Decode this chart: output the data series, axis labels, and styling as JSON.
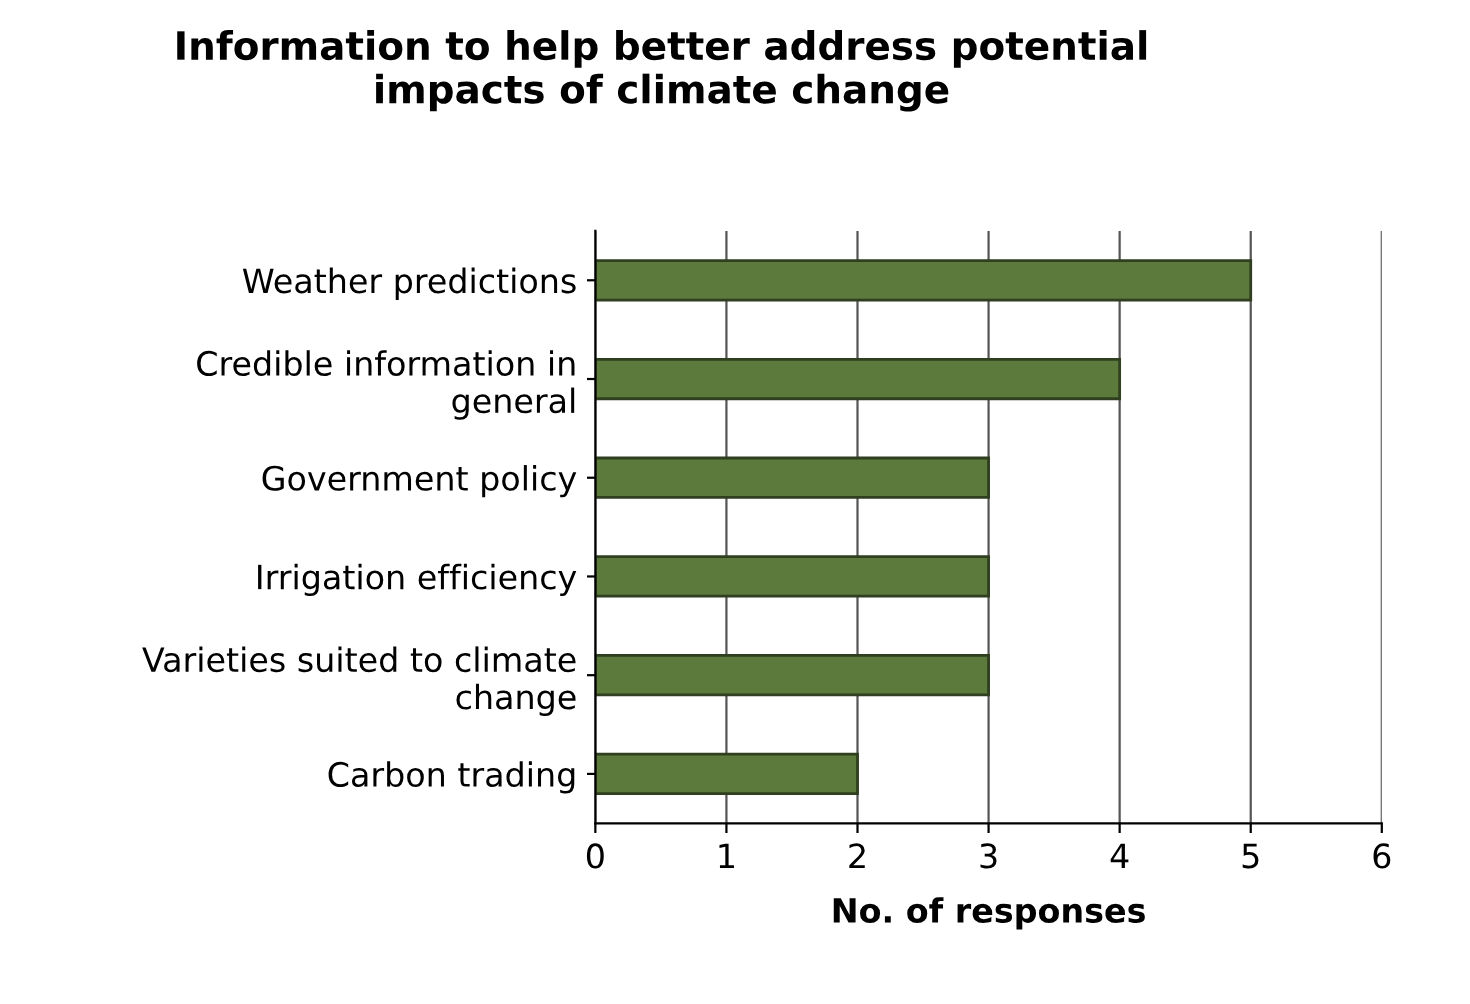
{
  "chart_data": {
    "type": "bar",
    "orientation": "horizontal",
    "title": "Information to help better address potential\nimpacts of climate change",
    "xlabel": "No. of responses",
    "categories": [
      "Weather predictions",
      "Credible information in\ngeneral",
      "Government policy",
      "Irrigation efficiency",
      "Varieties suited to climate\nchange",
      "Carbon trading"
    ],
    "values": [
      5,
      4,
      3,
      3,
      3,
      2
    ],
    "color": "#5b7a3c",
    "xlim": [
      0,
      6
    ],
    "xticks": [
      0,
      1,
      2,
      3,
      4,
      5,
      6
    ],
    "grid": "x",
    "legend": false
  }
}
